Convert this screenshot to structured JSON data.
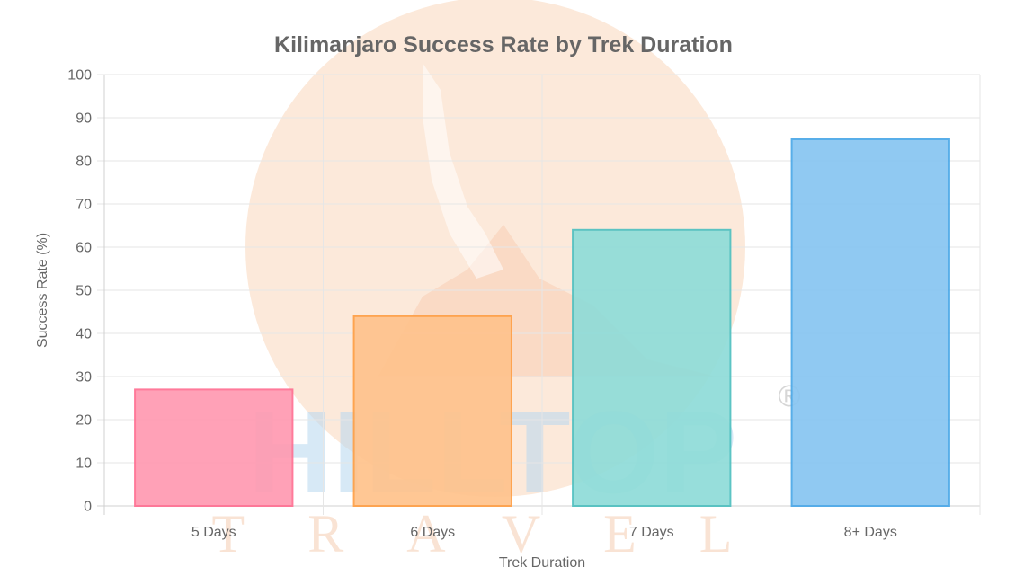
{
  "chart_data": {
    "type": "bar",
    "title": "Kilimanjaro Success Rate by Trek Duration",
    "xlabel": "Trek Duration",
    "ylabel": "Success Rate (%)",
    "categories": [
      "5 Days",
      "6 Days",
      "7 Days",
      "8+ Days"
    ],
    "values": [
      27,
      44,
      64,
      85
    ],
    "ylim": [
      0,
      100
    ],
    "yticks": [
      0,
      10,
      20,
      30,
      40,
      50,
      60,
      70,
      80,
      90,
      100
    ],
    "grid": true,
    "bar_fill_colors": [
      "#ff9ab1",
      "#ffc38c",
      "#8fdcd8",
      "#87c5f1"
    ],
    "bar_border_colors": [
      "#ff6f92",
      "#ff9f45",
      "#4fc0c0",
      "#4aa8e8"
    ]
  },
  "watermark": {
    "brand_word": "HILLTOP",
    "sub_word": "TRAVEL",
    "registered_mark": "®"
  }
}
